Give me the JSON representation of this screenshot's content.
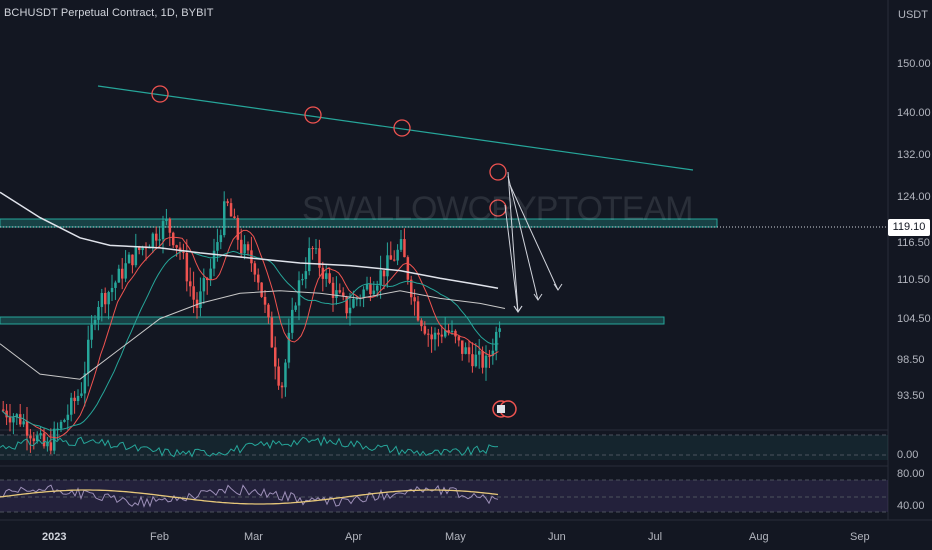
{
  "title": "BCHUSDT Perpetual Contract, 1D, BYBIT",
  "watermark": "SWALLOWCRYPTOTEAM",
  "currency": "USDT",
  "last_price": "119.10",
  "price_ticks": [
    "150.00",
    "140.00",
    "132.00",
    "124.00",
    "116.50",
    "110.50",
    "104.50",
    "98.50",
    "93.50"
  ],
  "rsi_ticks": [
    "0.00"
  ],
  "osc_ticks": [
    "80.00",
    "40.00"
  ],
  "time_labels": [
    "2023",
    "Feb",
    "Mar",
    "Apr",
    "May",
    "Jun",
    "Jul",
    "Aug",
    "Sep"
  ],
  "colors": {
    "background": "#131722",
    "up": "#26a69a",
    "down": "#ef5350",
    "trendline": "#26a69a",
    "zone": "#26a69a",
    "ma_white": "#e0e3eb",
    "ma_red": "#ef5350",
    "ma_green": "#26a69a",
    "osc_yellow": "#e6c77a",
    "osc_purple": "#9d8fb8"
  }
}
